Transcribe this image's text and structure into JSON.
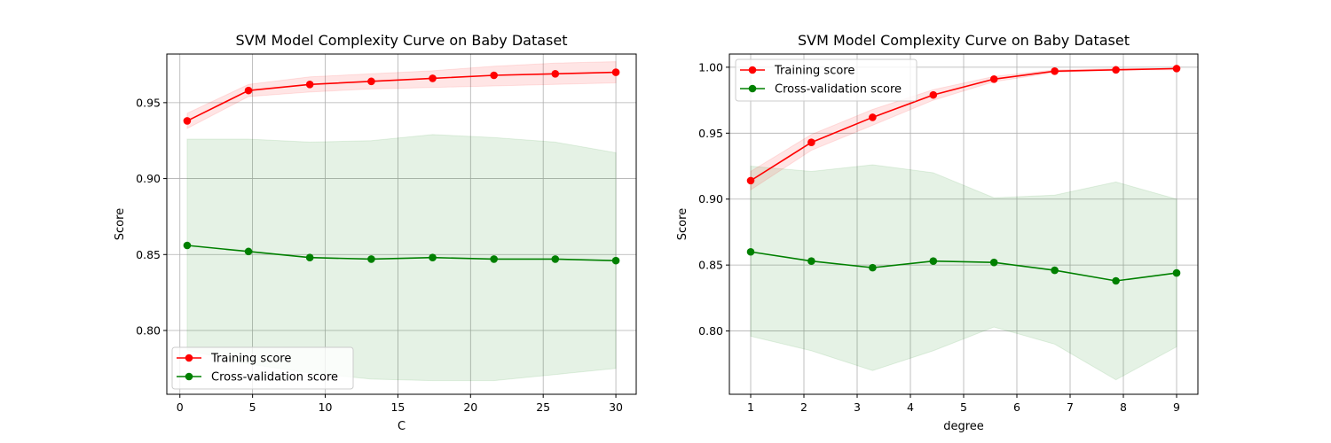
{
  "chart_data": [
    {
      "type": "line",
      "title": "SVM Model Complexity Curve on Baby Dataset",
      "xlabel": "C",
      "ylabel": "Score",
      "xlim": [
        -0.9,
        31.4
      ],
      "ylim": [
        0.758,
        0.982
      ],
      "xticks": [
        0,
        5,
        10,
        15,
        20,
        25,
        30
      ],
      "xtick_labels": [
        "0",
        "5",
        "10",
        "15",
        "20",
        "25",
        "30"
      ],
      "yticks": [
        0.8,
        0.85,
        0.9,
        0.95
      ],
      "ytick_labels": [
        "0.80",
        "0.85",
        "0.90",
        "0.95"
      ],
      "grid": true,
      "legend_position": "lower-left",
      "x": [
        0.5,
        4.72,
        8.94,
        13.17,
        17.39,
        21.61,
        25.83,
        30.0
      ],
      "series": [
        {
          "name": "Training score",
          "color": "#ff0000",
          "values": [
            0.938,
            0.958,
            0.962,
            0.964,
            0.966,
            0.968,
            0.969,
            0.97
          ],
          "band_lower": [
            0.933,
            0.954,
            0.957,
            0.959,
            0.96,
            0.961,
            0.962,
            0.963
          ],
          "band_upper": [
            0.943,
            0.962,
            0.967,
            0.969,
            0.971,
            0.974,
            0.976,
            0.977
          ]
        },
        {
          "name": "Cross-validation score",
          "color": "#008000",
          "values": [
            0.856,
            0.852,
            0.848,
            0.847,
            0.848,
            0.847,
            0.847,
            0.846
          ],
          "band_lower": [
            0.787,
            0.778,
            0.772,
            0.768,
            0.767,
            0.767,
            0.771,
            0.775
          ],
          "band_upper": [
            0.926,
            0.926,
            0.924,
            0.925,
            0.929,
            0.927,
            0.924,
            0.917
          ]
        }
      ]
    },
    {
      "type": "line",
      "title": "SVM Model Complexity Curve on Baby Dataset",
      "xlabel": "degree",
      "ylabel": "Score",
      "xlim": [
        0.6,
        9.4
      ],
      "ylim": [
        0.752,
        1.01
      ],
      "xticks": [
        1,
        2,
        3,
        4,
        5,
        6,
        7,
        8,
        9
      ],
      "xtick_labels": [
        "1",
        "2",
        "3",
        "4",
        "5",
        "6",
        "7",
        "8",
        "9"
      ],
      "yticks": [
        0.8,
        0.85,
        0.9,
        0.95,
        1.0
      ],
      "ytick_labels": [
        "0.80",
        "0.85",
        "0.90",
        "0.95",
        "1.00"
      ],
      "grid": true,
      "legend_position": "upper-left",
      "x": [
        1,
        2.14,
        3.29,
        4.43,
        5.57,
        6.71,
        7.86,
        9.0
      ],
      "series": [
        {
          "name": "Training score",
          "color": "#ff0000",
          "values": [
            0.914,
            0.943,
            0.962,
            0.979,
            0.991,
            0.997,
            0.998,
            0.999
          ],
          "band_lower": [
            0.907,
            0.937,
            0.956,
            0.975,
            0.989,
            0.996,
            0.998,
            0.998
          ],
          "band_upper": [
            0.921,
            0.949,
            0.968,
            0.983,
            0.993,
            0.998,
            0.999,
            0.999
          ]
        },
        {
          "name": "Cross-validation score",
          "color": "#008000",
          "values": [
            0.86,
            0.853,
            0.848,
            0.853,
            0.852,
            0.846,
            0.838,
            0.844
          ],
          "band_lower": [
            0.796,
            0.785,
            0.77,
            0.785,
            0.803,
            0.79,
            0.763,
            0.788
          ],
          "band_upper": [
            0.925,
            0.921,
            0.926,
            0.92,
            0.901,
            0.903,
            0.913,
            0.9
          ]
        }
      ]
    }
  ]
}
